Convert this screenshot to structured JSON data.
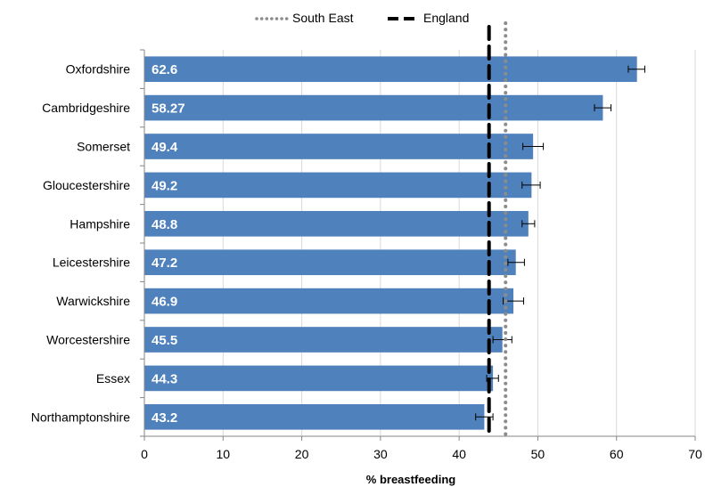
{
  "legend": {
    "items": [
      {
        "name": "South East",
        "style": "dotted",
        "color": "#8c8c8c"
      },
      {
        "name": "England",
        "style": "dashed",
        "color": "#000000"
      }
    ]
  },
  "colors": {
    "bar": "#4f81bd",
    "grid": "#d9d9d9",
    "axis": "#868686",
    "error_bar": "#000000"
  },
  "chart_data": {
    "type": "bar",
    "orientation": "horizontal",
    "categories": [
      "Oxfordshire",
      "Cambridgeshire",
      "Somerset",
      "Gloucestershire",
      "Hampshire",
      "Leicestershire",
      "Warwickshire",
      "Worcestershire",
      "Essex",
      "Northamptonshire"
    ],
    "values": [
      62.6,
      58.27,
      49.4,
      49.2,
      48.8,
      47.2,
      46.9,
      45.5,
      44.3,
      43.2
    ],
    "value_labels": [
      "62.6",
      "58.27",
      "49.4",
      "49.2",
      "48.8",
      "47.2",
      "46.9",
      "45.5",
      "44.3",
      "43.2"
    ],
    "error_bars": [
      {
        "low": 61.5,
        "high": 63.6
      },
      {
        "low": 57.2,
        "high": 59.3
      },
      {
        "low": 48.1,
        "high": 50.7
      },
      {
        "low": 48.0,
        "high": 50.3
      },
      {
        "low": 48.0,
        "high": 49.6
      },
      {
        "low": 46.2,
        "high": 48.3
      },
      {
        "low": 45.6,
        "high": 48.2
      },
      {
        "low": 44.3,
        "high": 46.7
      },
      {
        "low": 43.5,
        "high": 45.0
      },
      {
        "low": 42.1,
        "high": 44.3
      }
    ],
    "reference_lines": [
      {
        "name": "South East",
        "value": 45.9,
        "style": "dotted"
      },
      {
        "name": "England",
        "value": 43.8,
        "style": "dashed"
      }
    ],
    "xlabel": "% breastfeeding",
    "xlim": [
      0,
      70
    ],
    "xticks": [
      0,
      10,
      20,
      30,
      40,
      50,
      60,
      70
    ],
    "grid": "vertical",
    "legend_position": "top"
  }
}
